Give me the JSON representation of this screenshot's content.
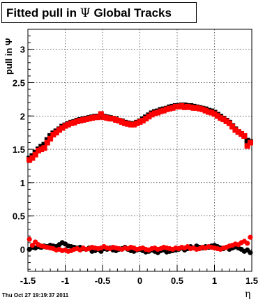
{
  "title": {
    "main": "Fitted pull in",
    "symbol": "Ψ",
    "suffix": "Global Tracks"
  },
  "footer": "Thu Oct 27 19:19:37 2011",
  "chart_data": {
    "type": "scatter",
    "title": "Fitted pull in Ψ  Global Tracks",
    "xlabel": "η",
    "ylabel": "pull in Ψ",
    "xlim": [
      -1.5,
      1.5
    ],
    "ylim": [
      -0.33,
      3.3
    ],
    "grid": true,
    "xticks": [
      -1.5,
      -1,
      -0.5,
      0,
      0.5,
      1,
      1.5
    ],
    "xtick_labels": [
      "-1.5",
      "-1",
      "-0.5",
      "0",
      "0.5",
      "1",
      "1.5"
    ],
    "yticks": [
      0,
      0.5,
      1,
      1.5,
      2,
      2.5,
      3
    ],
    "ytick_labels": [
      "0",
      "0.5",
      "1",
      "1.5",
      "2",
      "2.5",
      "3"
    ],
    "series": [
      {
        "color": "#000000",
        "marker": "square",
        "x": [
          -1.48,
          -1.44,
          -1.4,
          -1.36,
          -1.32,
          -1.28,
          -1.24,
          -1.2,
          -1.16,
          -1.12,
          -1.08,
          -1.04,
          -1.0,
          -0.96,
          -0.92,
          -0.88,
          -0.84,
          -0.8,
          -0.76,
          -0.72,
          -0.68,
          -0.64,
          -0.6,
          -0.56,
          -0.52,
          -0.48,
          -0.44,
          -0.4,
          -0.36,
          -0.32,
          -0.28,
          -0.24,
          -0.2,
          -0.16,
          -0.12,
          -0.08,
          -0.04,
          0.0,
          0.04,
          0.08,
          0.12,
          0.16,
          0.2,
          0.24,
          0.28,
          0.32,
          0.36,
          0.4,
          0.44,
          0.48,
          0.52,
          0.56,
          0.6,
          0.64,
          0.68,
          0.72,
          0.76,
          0.8,
          0.84,
          0.88,
          0.92,
          0.96,
          1.0,
          1.04,
          1.08,
          1.12,
          1.16,
          1.2,
          1.24,
          1.28,
          1.32,
          1.36,
          1.4,
          1.44,
          1.48
        ],
        "y": [
          1.36,
          1.4,
          1.45,
          1.5,
          1.54,
          1.57,
          1.64,
          1.7,
          1.74,
          1.77,
          1.8,
          1.84,
          1.86,
          1.88,
          1.9,
          1.91,
          1.93,
          1.94,
          1.95,
          1.96,
          1.97,
          1.98,
          1.99,
          1.99,
          2.0,
          1.99,
          1.98,
          1.97,
          1.96,
          1.95,
          1.93,
          1.92,
          1.9,
          1.89,
          1.88,
          1.88,
          1.9,
          1.92,
          1.95,
          1.98,
          2.01,
          2.04,
          2.06,
          2.07,
          2.09,
          2.1,
          2.11,
          2.13,
          2.14,
          2.15,
          2.15,
          2.16,
          2.16,
          2.15,
          2.15,
          2.14,
          2.13,
          2.12,
          2.11,
          2.1,
          2.08,
          2.07,
          2.05,
          2.02,
          1.99,
          1.96,
          1.93,
          1.9,
          1.85,
          1.8,
          1.76,
          1.73,
          1.7,
          1.63,
          1.61
        ]
      },
      {
        "color": "#ff0000",
        "marker": "square",
        "x": [
          -1.48,
          -1.44,
          -1.4,
          -1.36,
          -1.32,
          -1.28,
          -1.24,
          -1.2,
          -1.16,
          -1.12,
          -1.08,
          -1.04,
          -1.0,
          -0.96,
          -0.92,
          -0.88,
          -0.84,
          -0.8,
          -0.76,
          -0.72,
          -0.68,
          -0.64,
          -0.6,
          -0.56,
          -0.52,
          -0.48,
          -0.44,
          -0.4,
          -0.36,
          -0.32,
          -0.28,
          -0.24,
          -0.2,
          -0.16,
          -0.12,
          -0.08,
          -0.04,
          0.0,
          0.04,
          0.08,
          0.12,
          0.16,
          0.2,
          0.24,
          0.28,
          0.32,
          0.36,
          0.4,
          0.44,
          0.48,
          0.52,
          0.56,
          0.6,
          0.64,
          0.68,
          0.72,
          0.76,
          0.8,
          0.84,
          0.88,
          0.92,
          0.96,
          1.0,
          1.04,
          1.08,
          1.12,
          1.16,
          1.2,
          1.24,
          1.28,
          1.32,
          1.36,
          1.4,
          1.44,
          1.48
        ],
        "y": [
          1.34,
          1.37,
          1.42,
          1.48,
          1.5,
          1.52,
          1.6,
          1.66,
          1.72,
          1.75,
          1.79,
          1.82,
          1.85,
          1.87,
          1.89,
          1.9,
          1.92,
          1.93,
          1.94,
          1.95,
          1.96,
          1.97,
          1.98,
          1.98,
          2.03,
          1.98,
          1.97,
          1.96,
          1.96,
          1.94,
          1.93,
          1.91,
          1.89,
          1.88,
          1.87,
          1.87,
          1.89,
          1.91,
          1.93,
          1.96,
          1.99,
          2.02,
          2.04,
          2.05,
          2.07,
          2.08,
          2.1,
          2.11,
          2.12,
          2.14,
          2.14,
          2.15,
          2.13,
          2.14,
          2.13,
          2.12,
          2.12,
          2.11,
          2.1,
          2.08,
          2.06,
          2.05,
          2.03,
          2.0,
          1.97,
          1.95,
          1.92,
          1.89,
          1.84,
          1.79,
          1.76,
          1.73,
          1.7,
          1.55,
          1.6
        ]
      },
      {
        "color": "#000000",
        "marker": "circle",
        "x": [
          -1.48,
          -1.44,
          -1.4,
          -1.36,
          -1.32,
          -1.28,
          -1.24,
          -1.2,
          -1.16,
          -1.12,
          -1.08,
          -1.04,
          -1.0,
          -0.96,
          -0.92,
          -0.88,
          -0.84,
          -0.8,
          -0.76,
          -0.72,
          -0.68,
          -0.64,
          -0.6,
          -0.56,
          -0.52,
          -0.48,
          -0.44,
          -0.4,
          -0.36,
          -0.32,
          -0.28,
          -0.24,
          -0.2,
          -0.16,
          -0.12,
          -0.08,
          -0.04,
          0.0,
          0.04,
          0.08,
          0.12,
          0.16,
          0.2,
          0.24,
          0.28,
          0.32,
          0.36,
          0.4,
          0.44,
          0.48,
          0.52,
          0.56,
          0.6,
          0.64,
          0.68,
          0.72,
          0.76,
          0.8,
          0.84,
          0.88,
          0.92,
          0.96,
          1.0,
          1.04,
          1.08,
          1.12,
          1.16,
          1.2,
          1.24,
          1.28,
          1.32,
          1.36,
          1.4,
          1.44,
          1.48
        ],
        "y": [
          0.0,
          0.03,
          0.02,
          0.04,
          0.03,
          0.05,
          0.04,
          0.06,
          0.05,
          0.04,
          0.07,
          0.1,
          0.08,
          0.05,
          0.04,
          0.03,
          0.02,
          0.03,
          0.01,
          0.0,
          0.02,
          -0.03,
          -0.02,
          0.0,
          -0.03,
          0.01,
          0.0,
          0.02,
          -0.01,
          -0.02,
          0.0,
          0.01,
          0.03,
          0.0,
          -0.02,
          -0.03,
          -0.01,
          0.0,
          -0.02,
          -0.04,
          -0.03,
          -0.01,
          -0.03,
          -0.05,
          -0.02,
          -0.01,
          -0.04,
          -0.03,
          -0.02,
          -0.01,
          0.0,
          0.02,
          -0.01,
          0.01,
          0.04,
          0.02,
          0.05,
          0.03,
          0.02,
          0.04,
          0.03,
          0.05,
          0.06,
          0.04,
          0.02,
          0.01,
          0.03,
          0.0,
          0.02,
          0.04,
          0.02,
          0.0,
          -0.03,
          -0.01,
          -0.05
        ]
      },
      {
        "color": "#ff0000",
        "marker": "circle",
        "x": [
          -1.48,
          -1.44,
          -1.4,
          -1.36,
          -1.32,
          -1.28,
          -1.24,
          -1.2,
          -1.16,
          -1.12,
          -1.08,
          -1.04,
          -1.0,
          -0.96,
          -0.92,
          -0.88,
          -0.84,
          -0.8,
          -0.76,
          -0.72,
          -0.68,
          -0.64,
          -0.6,
          -0.56,
          -0.52,
          -0.48,
          -0.44,
          -0.4,
          -0.36,
          -0.32,
          -0.28,
          -0.24,
          -0.2,
          -0.16,
          -0.12,
          -0.08,
          -0.04,
          0.0,
          0.04,
          0.08,
          0.12,
          0.16,
          0.2,
          0.24,
          0.28,
          0.32,
          0.36,
          0.4,
          0.44,
          0.48,
          0.52,
          0.56,
          0.6,
          0.64,
          0.68,
          0.72,
          0.76,
          0.8,
          0.84,
          0.88,
          0.92,
          0.96,
          1.0,
          1.04,
          1.08,
          1.12,
          1.16,
          1.2,
          1.24,
          1.28,
          1.32,
          1.36,
          1.4,
          1.44,
          1.48
        ],
        "y": [
          0.15,
          0.06,
          0.11,
          0.07,
          0.05,
          0.04,
          0.03,
          0.02,
          0.01,
          -0.01,
          0.0,
          -0.02,
          -0.01,
          -0.03,
          -0.02,
          0.0,
          0.01,
          -0.01,
          0.02,
          0.0,
          0.01,
          0.03,
          0.02,
          0.01,
          0.02,
          0.04,
          0.02,
          0.01,
          0.03,
          0.02,
          0.01,
          0.0,
          0.02,
          0.01,
          0.03,
          0.02,
          0.0,
          0.01,
          0.02,
          0.0,
          -0.01,
          0.01,
          0.02,
          0.0,
          0.01,
          0.03,
          0.02,
          0.01,
          0.0,
          0.02,
          0.01,
          0.03,
          0.02,
          0.04,
          0.01,
          0.02,
          0.0,
          0.01,
          0.03,
          0.02,
          0.04,
          0.03,
          0.02,
          0.01,
          0.0,
          0.02,
          0.03,
          0.05,
          0.06,
          0.08,
          0.07,
          0.1,
          0.12,
          0.09,
          0.18
        ]
      }
    ]
  }
}
